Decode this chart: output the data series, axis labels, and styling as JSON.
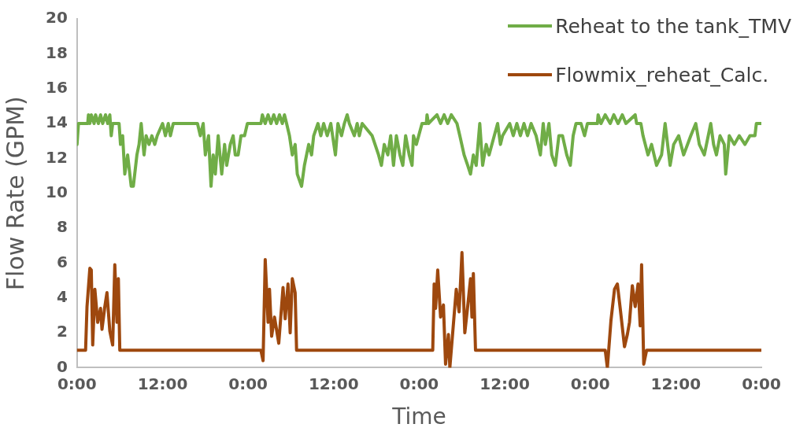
{
  "chart_data": {
    "type": "line",
    "xlabel": "Time",
    "ylabel": "Flow Rate (GPM)",
    "xlim": [
      "--01-01T00:00",
      "--01-05T00:00"
    ],
    "xticks": [
      {
        "value": "--01-01T00:00",
        "label": "0:00"
      },
      {
        "value": "--01-01T12:00",
        "label": "12:00"
      },
      {
        "value": "--01-02T00:00",
        "label": "0:00"
      },
      {
        "value": "--01-02T12:00",
        "label": "12:00"
      },
      {
        "value": "--01-03T00:00",
        "label": "0:00"
      },
      {
        "value": "--01-03T12:00",
        "label": "12:00"
      },
      {
        "value": "--01-04T00:00",
        "label": "0:00"
      },
      {
        "value": "--01-04T12:00",
        "label": "12:00"
      },
      {
        "value": "--01-05T00:00",
        "label": "0:00"
      }
    ],
    "ylim": [
      0,
      20
    ],
    "yticks": [
      0,
      2,
      4,
      6,
      8,
      10,
      12,
      14,
      16,
      18,
      20
    ],
    "grid": false,
    "legend": "top right",
    "marker": "none",
    "line_style": "solid",
    "series": [
      {
        "name": "Reheat to the tank_TMV",
        "color": "#70ad47",
        "x": [
          "--01-01T00:00",
          "--01-01T00:12",
          "--01-01T01:30",
          "--01-01T01:36",
          "--01-01T01:48",
          "--01-01T02:00",
          "--01-01T02:24",
          "--01-01T02:36",
          "--01-01T03:00",
          "--01-01T03:18",
          "--01-01T03:36",
          "--01-01T04:00",
          "--01-01T04:18",
          "--01-01T04:36",
          "--01-01T04:48",
          "--01-01T05:00",
          "--01-01T05:54",
          "--01-01T06:06",
          "--01-01T06:24",
          "--01-01T06:42",
          "--01-01T07:06",
          "--01-01T07:36",
          "--01-01T07:54",
          "--01-01T08:24",
          "--01-01T08:42",
          "--01-01T09:00",
          "--01-01T09:24",
          "--01-01T09:42",
          "--01-01T10:06",
          "--01-01T10:30",
          "--01-01T10:54",
          "--01-01T11:15",
          "--01-01T12:00",
          "--01-01T12:24",
          "--01-01T12:48",
          "--01-01T13:06",
          "--01-01T13:30",
          "--01-01T16:54",
          "--01-01T17:18",
          "--01-01T17:42",
          "--01-01T18:00",
          "--01-01T18:27",
          "--01-01T18:48",
          "--01-01T19:06",
          "--01-01T19:24",
          "--01-01T19:48",
          "--01-01T20:18",
          "--01-01T20:42",
          "--01-01T21:00",
          "--01-01T21:30",
          "--01-01T21:54",
          "--01-01T22:12",
          "--01-01T22:36",
          "--01-01T23:00",
          "--01-01T23:30",
          "--01-01T23:54",
          "--01-02T01:48",
          "--01-02T02:00",
          "--01-02T02:24",
          "--01-02T02:48",
          "--01-02T03:12",
          "--01-02T03:36",
          "--01-02T04:00",
          "--01-02T04:24",
          "--01-02T04:48",
          "--01-02T05:06",
          "--01-02T05:24",
          "--01-02T05:48",
          "--01-02T06:12",
          "--01-02T06:36",
          "--01-02T06:54",
          "--01-02T07:30",
          "--01-02T07:54",
          "--01-02T08:30",
          "--01-02T08:54",
          "--01-02T09:12",
          "--01-02T09:48",
          "--01-02T10:12",
          "--01-02T10:36",
          "--01-02T11:06",
          "--01-02T11:36",
          "--01-02T12:15",
          "--01-02T12:36",
          "--01-02T13:06",
          "--01-02T13:30",
          "--01-02T13:54",
          "--01-02T14:12",
          "--01-02T14:54",
          "--01-02T15:18",
          "--01-02T15:36",
          "--01-02T16:00",
          "--01-02T17:24",
          "--01-02T18:18",
          "--01-02T18:42",
          "--01-02T19:06",
          "--01-02T19:36",
          "--01-02T20:00",
          "--01-02T20:24",
          "--01-02T20:48",
          "--01-02T21:18",
          "--01-02T21:42",
          "--01-02T22:06",
          "--01-02T22:36",
          "--01-02T23:00",
          "--01-02T23:12",
          "--01-02T23:36",
          "--01-03T00:24",
          "--01-03T01:00",
          "--01-03T01:06",
          "--01-03T01:18",
          "--01-03T02:30",
          "--01-03T03:00",
          "--01-03T03:30",
          "--01-03T04:00",
          "--01-03T04:30",
          "--01-03T05:18",
          "--01-03T05:42",
          "--01-03T06:18",
          "--01-03T06:48",
          "--01-03T07:12",
          "--01-03T07:36",
          "--01-03T08:00",
          "--01-03T08:30",
          "--01-03T08:54",
          "--01-03T09:24",
          "--01-03T09:48",
          "--01-03T11:00",
          "--01-03T11:24",
          "--01-03T11:42",
          "--01-03T12:42",
          "--01-03T13:12",
          "--01-03T13:42",
          "--01-03T14:12",
          "--01-03T14:42",
          "--01-03T15:12",
          "--01-03T15:42",
          "--01-03T16:24",
          "--01-03T17:00",
          "--01-03T17:24",
          "--01-03T17:42",
          "--01-03T18:12",
          "--01-03T18:36",
          "--01-03T19:06",
          "--01-03T19:36",
          "--01-03T20:06",
          "--01-03T20:42",
          "--01-03T21:12",
          "--01-03T21:36",
          "--01-03T22:00",
          "--01-03T22:42",
          "--01-03T23:12",
          "--01-03T23:36",
          "--01-04T00:00",
          "--01-04T01:00",
          "--01-04T01:06",
          "--01-04T01:30",
          "--01-04T02:06",
          "--01-04T02:48",
          "--01-04T03:18",
          "--01-04T03:54",
          "--01-04T04:30",
          "--01-04T05:00",
          "--01-04T06:18",
          "--01-04T06:30",
          "--01-04T07:06",
          "--01-04T07:24",
          "--01-04T08:06",
          "--01-04T08:36",
          "--01-04T09:18",
          "--01-04T10:00",
          "--01-04T10:30",
          "--01-04T11:12",
          "--01-04T11:42",
          "--01-04T12:24",
          "--01-04T13:06",
          "--01-04T14:06",
          "--01-04T14:48",
          "--01-04T15:18",
          "--01-04T16:00",
          "--01-04T16:54",
          "--01-04T17:18",
          "--01-04T17:42",
          "--01-04T18:12",
          "--01-04T18:48",
          "--01-04T19:00",
          "--01-04T19:30",
          "--01-04T20:12",
          "--01-04T20:54",
          "--01-04T21:42",
          "--01-04T22:24",
          "--01-04T23:06",
          "--01-04T23:18",
          "--01-05T00:00"
        ],
        "values": [
          12.8,
          14,
          14,
          14.5,
          14,
          14.5,
          14,
          14.5,
          14,
          14.5,
          14,
          14.5,
          14,
          14.5,
          13.3,
          14,
          14,
          12.8,
          13.3,
          11.1,
          12.2,
          10.4,
          10.4,
          12.2,
          12.8,
          14,
          12.2,
          13.3,
          12.8,
          13.3,
          12.8,
          13.3,
          14,
          13.3,
          14,
          13.3,
          14,
          14,
          13.3,
          14,
          12.2,
          13.3,
          10.4,
          12.2,
          11.1,
          13.3,
          11.1,
          12.8,
          11.6,
          12.8,
          13.3,
          12.2,
          12.2,
          13.3,
          13.3,
          14,
          14,
          14.5,
          14,
          14.5,
          14,
          14.5,
          14,
          14.5,
          14,
          14.5,
          14,
          13.3,
          12.2,
          12.8,
          11.1,
          10.4,
          11.6,
          12.8,
          12.2,
          13.3,
          14,
          13.3,
          14,
          13.3,
          14,
          12.2,
          14,
          13.3,
          14,
          14.5,
          14,
          13.3,
          14,
          13.3,
          14,
          13.3,
          12.2,
          11.6,
          12.8,
          12.2,
          13.3,
          11.6,
          13.3,
          12.2,
          11.6,
          13.3,
          12.2,
          11.6,
          13.3,
          12.8,
          14,
          14,
          14.5,
          14,
          14.5,
          14,
          14.5,
          14,
          14.5,
          14,
          13.3,
          12.2,
          11.6,
          11.1,
          12.2,
          11.6,
          14,
          11.6,
          12.8,
          12.2,
          14,
          12.8,
          13.3,
          14,
          13.3,
          14,
          13.3,
          14,
          13.3,
          14,
          13.3,
          12.2,
          14,
          12.8,
          14,
          12.2,
          11.6,
          13.3,
          13.3,
          12.2,
          11.6,
          13.3,
          14,
          14,
          13.3,
          14,
          14,
          14,
          14.5,
          14,
          14.5,
          14,
          14.5,
          14,
          14.5,
          14,
          14.5,
          14,
          14,
          13.3,
          12.2,
          12.8,
          11.6,
          12.2,
          14,
          11.6,
          12.8,
          13.3,
          12.2,
          13.3,
          14,
          12.8,
          12.2,
          14,
          12.8,
          12.2,
          13.3,
          12.8,
          11.1,
          13.3,
          12.8,
          13.3,
          12.8,
          13.3,
          13.3,
          14,
          14
        ]
      },
      {
        "name": "Flowmix_reheat_Calc.",
        "color": "#9e480e",
        "x": [
          "--01-01T00:00",
          "--01-01T01:12",
          "--01-01T01:24",
          "--01-01T01:48",
          "--01-01T02:00",
          "--01-01T02:12",
          "--01-01T02:30",
          "--01-01T02:54",
          "--01-01T03:18",
          "--01-01T03:30",
          "--01-01T03:54",
          "--01-01T04:12",
          "--01-01T04:36",
          "--01-01T05:00",
          "--01-01T05:18",
          "--01-01T05:36",
          "--01-01T05:48",
          "--01-01T06:00",
          "--01-01T12:00",
          "--01-01T18:00",
          "--01-02T01:48",
          "--01-02T02:06",
          "--01-02T02:24",
          "--01-02T02:48",
          "--01-02T03:00",
          "--01-02T03:18",
          "--01-02T03:42",
          "--01-02T04:18",
          "--01-02T04:54",
          "--01-02T05:12",
          "--01-02T05:36",
          "--01-02T05:54",
          "--01-02T06:12",
          "--01-02T06:36",
          "--01-02T06:48",
          "--01-02T12:00",
          "--01-02T18:00",
          "--01-03T01:54",
          "--01-03T02:06",
          "--01-03T02:18",
          "--01-03T02:36",
          "--01-03T03:00",
          "--01-03T03:24",
          "--01-03T03:42",
          "--01-03T04:06",
          "--01-03T04:18",
          "--01-03T04:42",
          "--01-03T05:12",
          "--01-03T05:36",
          "--01-03T06:00",
          "--01-03T06:24",
          "--01-03T06:48",
          "--01-03T07:12",
          "--01-03T07:24",
          "--01-03T07:36",
          "--01-03T07:54",
          "--01-03T12:00",
          "--01-03T18:00",
          "--01-04T02:06",
          "--01-04T02:24",
          "--01-04T02:54",
          "--01-04T03:24",
          "--01-04T03:48",
          "--01-04T04:12",
          "--01-04T04:48",
          "--01-04T05:12",
          "--01-04T05:30",
          "--01-04T05:54",
          "--01-04T06:18",
          "--01-04T06:42",
          "--01-04T07:00",
          "--01-04T07:12",
          "--01-04T07:30",
          "--01-04T07:54",
          "--01-04T12:00",
          "--01-05T00:00"
        ],
        "values": [
          1.0,
          1.0,
          3.5,
          5.7,
          5.6,
          1.3,
          4.5,
          2.6,
          3.4,
          2.2,
          3.5,
          4.3,
          2.1,
          1.3,
          5.9,
          2.6,
          5.1,
          1.0,
          1.0,
          1.0,
          1.0,
          0.4,
          6.2,
          2.6,
          4.5,
          1.8,
          2.9,
          1.4,
          4.6,
          2.8,
          4.8,
          2.0,
          5.1,
          4.3,
          1.0,
          1.0,
          1.0,
          1.0,
          4.8,
          3.4,
          5.6,
          2.9,
          3.6,
          0.2,
          1.9,
          0.0,
          2.0,
          4.5,
          3.2,
          6.6,
          2.0,
          3.5,
          5.1,
          2.9,
          5.4,
          1.0,
          1.0,
          1.0,
          1.0,
          0.0,
          2.7,
          4.5,
          4.8,
          3.4,
          1.2,
          1.9,
          2.6,
          4.7,
          3.5,
          4.8,
          2.4,
          5.9,
          0.2,
          1.0,
          1.0,
          1.0
        ]
      }
    ]
  }
}
